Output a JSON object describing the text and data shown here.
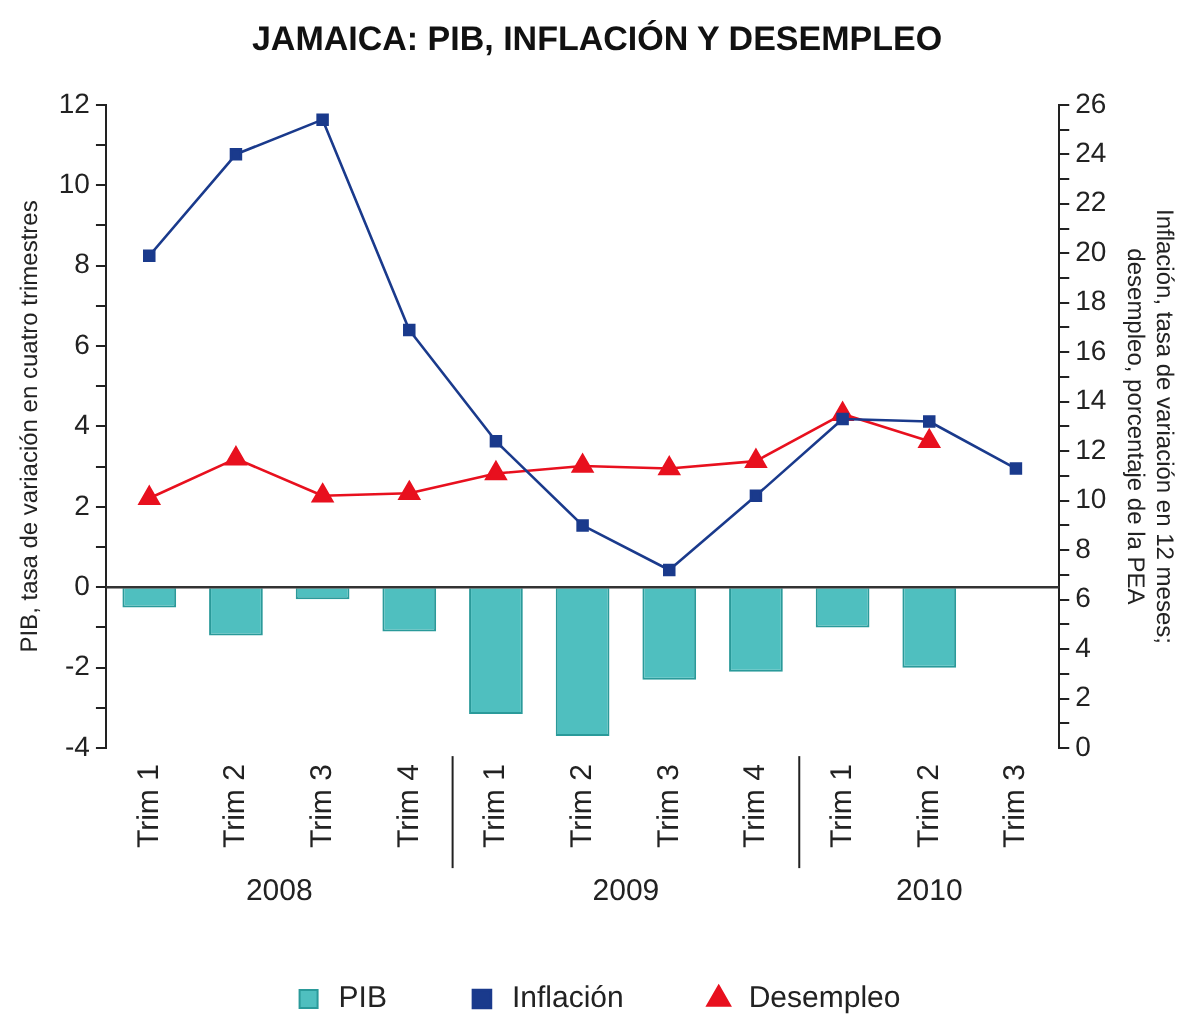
{
  "chart_data": {
    "type": "bar",
    "title": "JAMAICA: PIB, INFLACIÓN Y DESEMPLEO",
    "ylabel": "PIB, tasa de variación en cuatro trimestres",
    "y2label": "Inflación, tasa de variación en 12 meses;\ndesempleo, porcentaje de la PEA",
    "categories": [
      "Trim 1",
      "Trim 2",
      "Trim 3",
      "Trim 4",
      "Trim 1",
      "Trim 2",
      "Trim 3",
      "Trim 4",
      "Trim 1",
      "Trim 2",
      "Trim 3"
    ],
    "annotations": [
      "2008",
      "2009",
      "2010"
    ],
    "series": [
      {
        "name": "PIB",
        "color": "#4fbfbf",
        "values": [
          -0.5,
          -1.2,
          -0.3,
          -1.1,
          -3.15,
          -3.7,
          -2.3,
          -2.1,
          -1.0,
          -2.0,
          null
        ]
      },
      {
        "name": "Inflación",
        "type": "line",
        "axis": "y2",
        "marker": "square",
        "color": "#1a3a8c",
        "values": [
          19.9,
          24.0,
          25.4,
          16.9,
          12.4,
          9.0,
          7.2,
          10.2,
          13.3,
          13.2,
          11.3
        ]
      },
      {
        "name": "Desempleo",
        "type": "line",
        "axis": "y2",
        "marker": "triangle",
        "color": "#e8101e",
        "values": [
          10.1,
          11.7,
          10.2,
          10.3,
          11.1,
          11.4,
          11.3,
          11.6,
          13.5,
          12.4,
          null
        ]
      }
    ],
    "ylim": [
      -4,
      12
    ],
    "yticks": [
      -4,
      {
        "value": -3,
        "label": null
      },
      -2,
      {
        "value": -1,
        "label": null
      },
      0,
      {
        "value": 1,
        "label": null
      },
      2,
      {
        "value": 3,
        "label": null
      },
      4,
      {
        "value": 5,
        "label": null
      },
      6,
      {
        "value": 7,
        "label": null
      },
      8,
      {
        "value": 9,
        "label": null
      },
      10,
      {
        "value": 11,
        "label": null
      },
      12
    ],
    "y2lim": [
      0,
      26
    ],
    "y2ticks": [
      0,
      {
        "value": 1,
        "label": null
      },
      2,
      {
        "value": 3,
        "label": null
      },
      4,
      {
        "value": 5,
        "label": null
      },
      6,
      {
        "value": 7,
        "label": null
      },
      8,
      {
        "value": 9,
        "label": null
      },
      10,
      {
        "value": 11,
        "label": null
      },
      12,
      {
        "value": 13,
        "label": null
      },
      14,
      {
        "value": 15,
        "label": null
      },
      16,
      {
        "value": 17,
        "label": null
      },
      18,
      {
        "value": 19,
        "label": null
      },
      20,
      {
        "value": 21,
        "label": null
      },
      22,
      {
        "value": 23,
        "label": null
      },
      24,
      {
        "value": 25,
        "label": null
      },
      26
    ],
    "ref_lines": [
      {
        "axis": "y",
        "value": 0,
        "color": "#333333"
      }
    ],
    "grid": false,
    "legend": "bottom",
    "line_style": "solid"
  }
}
